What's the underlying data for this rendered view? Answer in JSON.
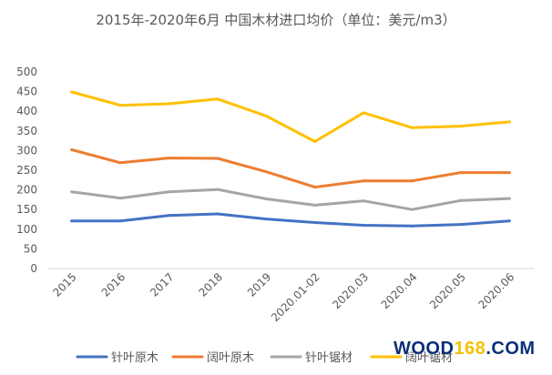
{
  "chart_data": {
    "type": "line",
    "title": "2015年-2020年6月 中国木材进口均价（单位：美元/m3）",
    "categories": [
      "2015",
      "2016",
      "2017",
      "2018",
      "2019",
      "2020.01-02",
      "2020.03",
      "2020.04",
      "2020.05",
      "2020.06"
    ],
    "series": [
      {
        "name": "针叶原木",
        "color": "#4472c4",
        "values": [
          121,
          121,
          135,
          139,
          126,
          117,
          110,
          108,
          112,
          121
        ]
      },
      {
        "name": "阔叶原木",
        "color": "#ed7d31",
        "values": [
          302,
          269,
          281,
          280,
          246,
          207,
          223,
          223,
          244,
          244
        ]
      },
      {
        "name": "针叶锯材",
        "color": "#a5a5a5",
        "values": [
          195,
          179,
          195,
          201,
          177,
          161,
          172,
          150,
          173,
          178
        ]
      },
      {
        "name": "阔叶锯材",
        "color": "#ffc000",
        "values": [
          449,
          415,
          419,
          431,
          388,
          323,
          396,
          358,
          362,
          373
        ]
      }
    ],
    "ylim": [
      0,
      500
    ],
    "yticks": [
      0,
      50,
      100,
      150,
      200,
      250,
      300,
      350,
      400,
      450,
      500
    ],
    "grid": false,
    "legend_position": "bottom"
  },
  "watermark": {
    "part1": "WOOD",
    "part2": "168",
    "part3": ".COM"
  }
}
